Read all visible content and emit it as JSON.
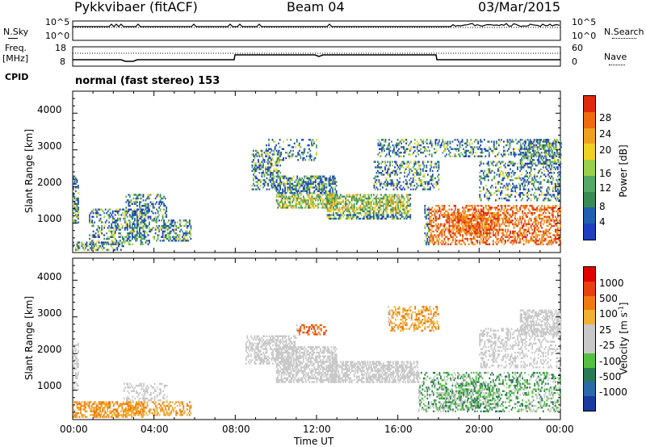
{
  "header": {
    "title": "Pykkvibaer (fitACF)",
    "beam": "Beam 04",
    "date": "03/Mar/2015"
  },
  "top_panels": {
    "nsky_label": "N.Sky",
    "nsky_ticks": [
      "10^5",
      "10^0"
    ],
    "nsearch_label": "N.Search",
    "nsearch_ticks": [
      "10^5",
      "10^0"
    ],
    "freq_label": "Freq.",
    "freq_unit": "[MHz]",
    "freq_ticks": [
      "18",
      "8"
    ],
    "nave_label": "Nave",
    "nave_ticks": [
      "60",
      "0"
    ],
    "cpid_label": "CPID",
    "cpid_text": "normal (fast stereo) 153"
  },
  "colors": {
    "power": [
      "#1f3fbf",
      "#2060b0",
      "#3a8a55",
      "#55a865",
      "#9ad04a",
      "#f0d020",
      "#f0a020",
      "#f06a10",
      "#e02a10"
    ],
    "velocity": [
      "#1a3aa0",
      "#2a6aaa",
      "#2a7a55",
      "#55c040",
      "#c8c8c8",
      "#c8c8c8",
      "#f0b030",
      "#f07a10",
      "#e84010",
      "#e00000"
    ]
  },
  "chart_data": [
    {
      "type": "heatmap",
      "quantity": "Power",
      "ylabel": "Slant Range [km]",
      "xlabel": "",
      "x_ticks": [
        "00:00",
        "04:00",
        "08:00",
        "12:00",
        "16:00",
        "20:00",
        "00:00"
      ],
      "y_ticks": [
        "1000",
        "2000",
        "3000",
        "4000"
      ],
      "ylim": [
        200,
        4600
      ],
      "colorbar_label": "Power [dB]",
      "colorbar_ticks": [
        "4",
        "8",
        "12",
        "16",
        "20",
        "24",
        "28"
      ]
    },
    {
      "type": "heatmap",
      "quantity": "Velocity",
      "ylabel": "Slant Range [km]",
      "xlabel": "Time UT",
      "x_ticks": [
        "00:00",
        "04:00",
        "08:00",
        "12:00",
        "16:00",
        "20:00",
        "00:00"
      ],
      "y_ticks": [
        "1000",
        "2000",
        "3000",
        "4000"
      ],
      "ylim": [
        200,
        4600
      ],
      "colorbar_label": "Velocity [m s",
      "colorbar_label_sup": "-1",
      "colorbar_label_end": "]",
      "colorbar_ticks": [
        "1000",
        "500",
        "100",
        "25",
        "-25",
        "-100",
        "-500",
        "-1000"
      ]
    }
  ]
}
